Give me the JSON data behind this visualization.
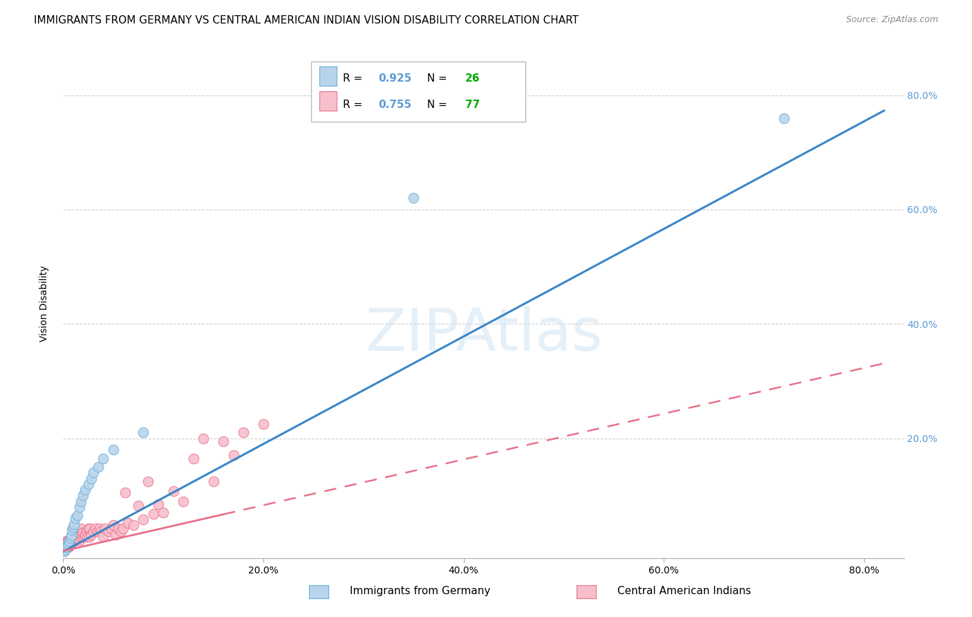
{
  "title": "IMMIGRANTS FROM GERMANY VS CENTRAL AMERICAN INDIAN VISION DISABILITY CORRELATION CHART",
  "source": "Source: ZipAtlas.com",
  "ylabel": "Vision Disability",
  "watermark": "ZIPAtlas",
  "xlim": [
    0.0,
    0.84
  ],
  "ylim": [
    -0.01,
    0.88
  ],
  "series_germany": {
    "label": "Immigrants from Germany",
    "R": 0.925,
    "N": 26,
    "color": "#b8d4ec",
    "edge_color": "#6aaed6",
    "line_color": "#3a86c8",
    "trend_intercept": 0.002,
    "trend_slope": 0.94,
    "x": [
      0.001,
      0.002,
      0.003,
      0.004,
      0.005,
      0.006,
      0.007,
      0.008,
      0.009,
      0.01,
      0.011,
      0.012,
      0.014,
      0.016,
      0.018,
      0.02,
      0.022,
      0.025,
      0.028,
      0.03,
      0.035,
      0.04,
      0.05,
      0.08,
      0.35,
      0.72
    ],
    "y": [
      0.003,
      0.005,
      0.01,
      0.012,
      0.015,
      0.02,
      0.025,
      0.03,
      0.04,
      0.045,
      0.05,
      0.06,
      0.065,
      0.08,
      0.09,
      0.1,
      0.11,
      0.12,
      0.13,
      0.14,
      0.15,
      0.165,
      0.18,
      0.21,
      0.62,
      0.76
    ]
  },
  "series_central": {
    "label": "Central American Indians",
    "R": 0.755,
    "N": 77,
    "color": "#f7bfcc",
    "edge_color": "#e8708a",
    "line_color": "#e8708a",
    "trend_intercept": 0.003,
    "trend_slope": 0.4,
    "trend_solid_end": 0.16,
    "x": [
      0.001,
      0.001,
      0.002,
      0.002,
      0.003,
      0.003,
      0.003,
      0.004,
      0.004,
      0.005,
      0.005,
      0.005,
      0.006,
      0.006,
      0.007,
      0.007,
      0.008,
      0.008,
      0.009,
      0.009,
      0.01,
      0.01,
      0.011,
      0.011,
      0.012,
      0.012,
      0.013,
      0.013,
      0.014,
      0.015,
      0.015,
      0.016,
      0.017,
      0.018,
      0.018,
      0.019,
      0.02,
      0.021,
      0.022,
      0.023,
      0.024,
      0.025,
      0.026,
      0.027,
      0.028,
      0.03,
      0.032,
      0.034,
      0.036,
      0.038,
      0.04,
      0.042,
      0.045,
      0.048,
      0.05,
      0.052,
      0.055,
      0.058,
      0.06,
      0.062,
      0.065,
      0.07,
      0.075,
      0.08,
      0.085,
      0.09,
      0.095,
      0.1,
      0.11,
      0.12,
      0.13,
      0.14,
      0.15,
      0.16,
      0.17,
      0.18,
      0.2
    ],
    "y": [
      0.005,
      0.01,
      0.008,
      0.015,
      0.01,
      0.015,
      0.02,
      0.012,
      0.018,
      0.01,
      0.015,
      0.022,
      0.012,
      0.02,
      0.015,
      0.022,
      0.015,
      0.025,
      0.018,
      0.028,
      0.02,
      0.028,
      0.022,
      0.03,
      0.022,
      0.03,
      0.025,
      0.035,
      0.025,
      0.028,
      0.038,
      0.022,
      0.028,
      0.032,
      0.042,
      0.028,
      0.035,
      0.028,
      0.032,
      0.038,
      0.028,
      0.042,
      0.028,
      0.042,
      0.032,
      0.038,
      0.042,
      0.038,
      0.042,
      0.038,
      0.028,
      0.042,
      0.038,
      0.042,
      0.048,
      0.032,
      0.042,
      0.038,
      0.042,
      0.105,
      0.052,
      0.048,
      0.082,
      0.058,
      0.125,
      0.068,
      0.085,
      0.07,
      0.108,
      0.09,
      0.165,
      0.2,
      0.125,
      0.195,
      0.17,
      0.21,
      0.225
    ]
  },
  "xtick_vals": [
    0.0,
    0.2,
    0.4,
    0.6,
    0.8
  ],
  "ytick_vals": [
    0.2,
    0.4,
    0.6,
    0.8
  ],
  "title_fontsize": 11,
  "axis_label_fontsize": 10,
  "tick_fontsize": 10,
  "legend_fontsize": 11,
  "background_color": "#ffffff",
  "grid_color": "#d0d0d0",
  "right_axis_color": "#5b9bd5",
  "green_color": "#00aa00"
}
